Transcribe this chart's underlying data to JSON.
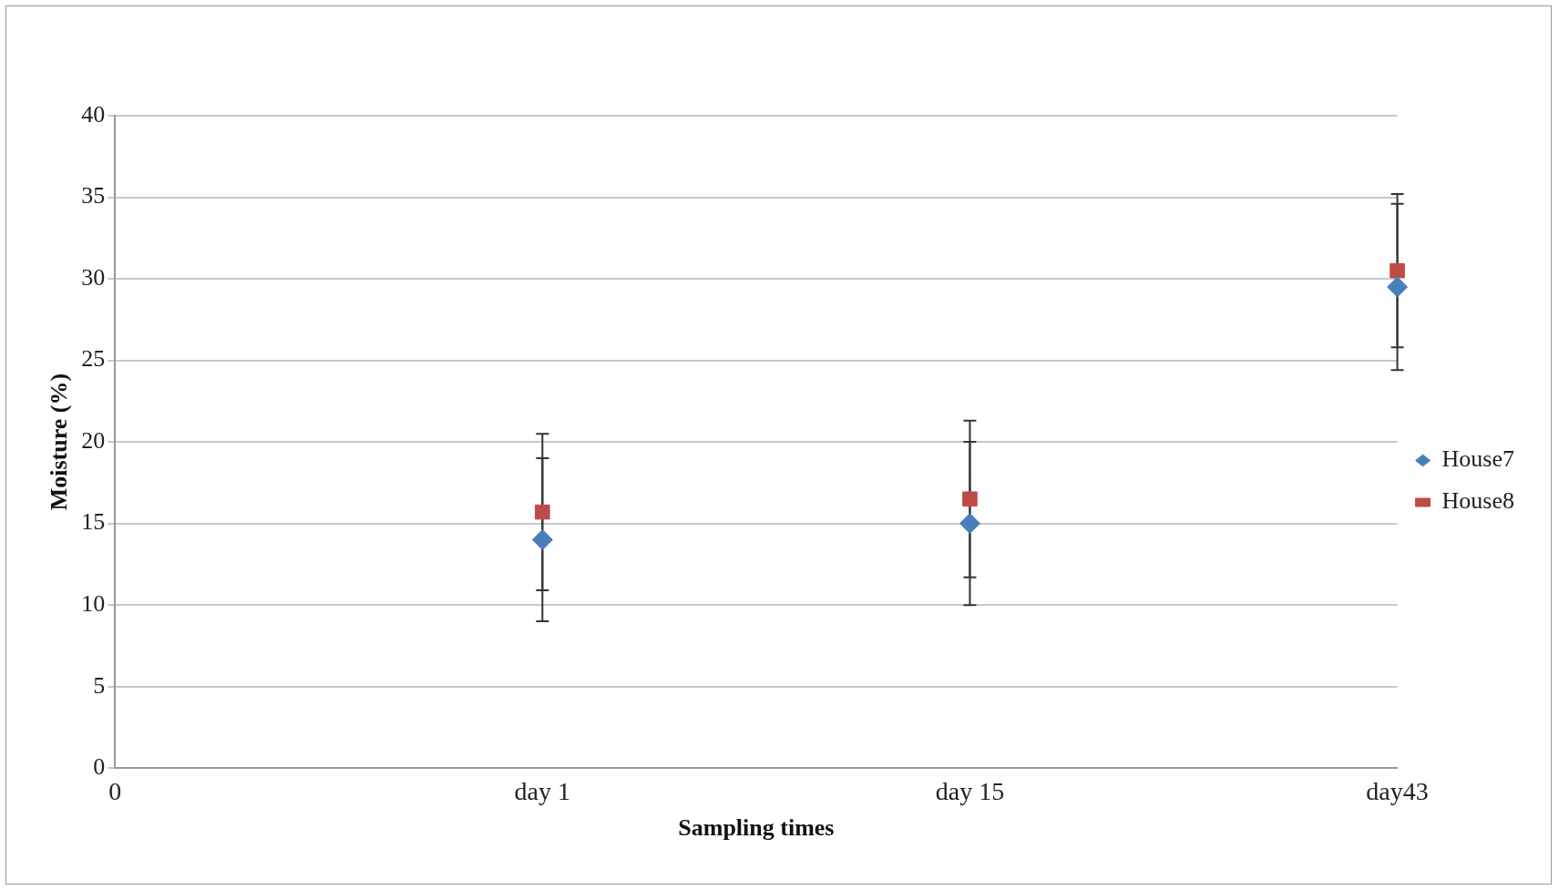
{
  "chart_data": {
    "type": "scatter",
    "xlabel": "Sampling times",
    "ylabel": "Moisture (%)",
    "categories": [
      "0",
      "day 1",
      "day 15",
      "day43"
    ],
    "series": [
      {
        "name": "House7",
        "color": "#4a7ebb",
        "marker": "diamond",
        "values": [
          null,
          14,
          15,
          29.5
        ],
        "errors": [
          null,
          5,
          5,
          5.1
        ]
      },
      {
        "name": "House8",
        "color": "#be4b48",
        "marker": "square",
        "values": [
          null,
          15.7,
          16.5,
          30.5
        ],
        "errors": [
          null,
          4.8,
          4.8,
          4.7
        ]
      }
    ],
    "ylim": [
      0,
      40
    ],
    "yticks": [
      0,
      5,
      10,
      15,
      20,
      25,
      30,
      35,
      40
    ],
    "grid": "y",
    "legend": "right"
  }
}
